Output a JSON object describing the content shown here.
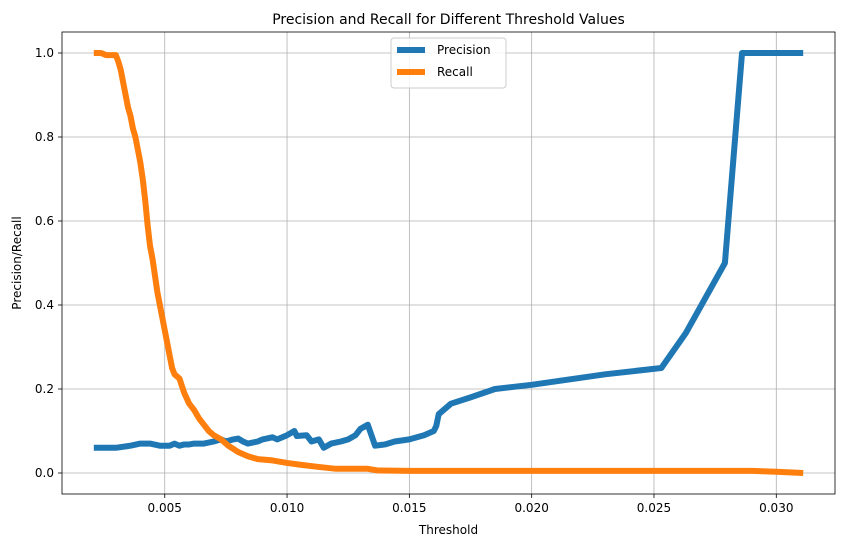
{
  "chart_data": {
    "type": "line",
    "title": "Precision and Recall for Different Threshold Values",
    "xlabel": "Threshold",
    "ylabel": "Precision/Recall",
    "xlim": [
      0.0008,
      0.0324
    ],
    "ylim": [
      -0.05,
      1.05
    ],
    "xticks": [
      0.005,
      0.01,
      0.015,
      0.02,
      0.025,
      0.03
    ],
    "xtick_labels": [
      "0.005",
      "0.010",
      "0.015",
      "0.020",
      "0.025",
      "0.030"
    ],
    "yticks": [
      0.0,
      0.2,
      0.4,
      0.6,
      0.8,
      1.0
    ],
    "ytick_labels": [
      "0.0",
      "0.2",
      "0.4",
      "0.6",
      "0.8",
      "1.0"
    ],
    "grid": true,
    "legend_position": "upper center",
    "series": [
      {
        "name": "Precision",
        "color": "#1f77b4",
        "points": [
          [
            0.0021,
            0.06
          ],
          [
            0.003,
            0.06
          ],
          [
            0.0036,
            0.065
          ],
          [
            0.004,
            0.07
          ],
          [
            0.0044,
            0.07
          ],
          [
            0.0048,
            0.065
          ],
          [
            0.0052,
            0.065
          ],
          [
            0.0054,
            0.07
          ],
          [
            0.0056,
            0.065
          ],
          [
            0.0058,
            0.068
          ],
          [
            0.006,
            0.068
          ],
          [
            0.0062,
            0.07
          ],
          [
            0.0066,
            0.07
          ],
          [
            0.007,
            0.075
          ],
          [
            0.0073,
            0.08
          ],
          [
            0.0075,
            0.075
          ],
          [
            0.0078,
            0.08
          ],
          [
            0.008,
            0.082
          ],
          [
            0.0082,
            0.075
          ],
          [
            0.0084,
            0.07
          ],
          [
            0.0088,
            0.075
          ],
          [
            0.009,
            0.08
          ],
          [
            0.0094,
            0.085
          ],
          [
            0.0096,
            0.08
          ],
          [
            0.01,
            0.09
          ],
          [
            0.0103,
            0.1
          ],
          [
            0.0104,
            0.088
          ],
          [
            0.0108,
            0.09
          ],
          [
            0.011,
            0.075
          ],
          [
            0.0113,
            0.08
          ],
          [
            0.0115,
            0.06
          ],
          [
            0.0118,
            0.07
          ],
          [
            0.0122,
            0.075
          ],
          [
            0.0125,
            0.08
          ],
          [
            0.0128,
            0.09
          ],
          [
            0.013,
            0.105
          ],
          [
            0.0133,
            0.115
          ],
          [
            0.0136,
            0.065
          ],
          [
            0.014,
            0.068
          ],
          [
            0.0144,
            0.075
          ],
          [
            0.015,
            0.08
          ],
          [
            0.0156,
            0.09
          ],
          [
            0.016,
            0.1
          ],
          [
            0.0161,
            0.112
          ],
          [
            0.0162,
            0.14
          ],
          [
            0.0167,
            0.165
          ],
          [
            0.0175,
            0.18
          ],
          [
            0.0185,
            0.2
          ],
          [
            0.02,
            0.21
          ],
          [
            0.023,
            0.235
          ],
          [
            0.0253,
            0.25
          ],
          [
            0.0263,
            0.333
          ],
          [
            0.0279,
            0.5
          ],
          [
            0.0286,
            1.0
          ],
          [
            0.0311,
            1.0
          ]
        ]
      },
      {
        "name": "Recall",
        "color": "#ff7f0e",
        "points": [
          [
            0.0021,
            1.0
          ],
          [
            0.0024,
            1.0
          ],
          [
            0.0026,
            0.995
          ],
          [
            0.003,
            0.995
          ],
          [
            0.0031,
            0.98
          ],
          [
            0.0032,
            0.96
          ],
          [
            0.0033,
            0.93
          ],
          [
            0.0034,
            0.9
          ],
          [
            0.0035,
            0.87
          ],
          [
            0.0036,
            0.85
          ],
          [
            0.0037,
            0.82
          ],
          [
            0.0038,
            0.8
          ],
          [
            0.0039,
            0.77
          ],
          [
            0.004,
            0.74
          ],
          [
            0.0041,
            0.7
          ],
          [
            0.0042,
            0.65
          ],
          [
            0.0043,
            0.59
          ],
          [
            0.0044,
            0.54
          ],
          [
            0.0045,
            0.51
          ],
          [
            0.0046,
            0.47
          ],
          [
            0.0047,
            0.43
          ],
          [
            0.0048,
            0.4
          ],
          [
            0.0049,
            0.37
          ],
          [
            0.005,
            0.34
          ],
          [
            0.0051,
            0.31
          ],
          [
            0.0052,
            0.28
          ],
          [
            0.0053,
            0.25
          ],
          [
            0.0054,
            0.235
          ],
          [
            0.0056,
            0.225
          ],
          [
            0.0058,
            0.19
          ],
          [
            0.006,
            0.165
          ],
          [
            0.0062,
            0.15
          ],
          [
            0.0064,
            0.13
          ],
          [
            0.0066,
            0.115
          ],
          [
            0.0068,
            0.1
          ],
          [
            0.007,
            0.09
          ],
          [
            0.0073,
            0.08
          ],
          [
            0.0076,
            0.065
          ],
          [
            0.008,
            0.05
          ],
          [
            0.0084,
            0.04
          ],
          [
            0.0088,
            0.033
          ],
          [
            0.0094,
            0.03
          ],
          [
            0.01,
            0.024
          ],
          [
            0.0105,
            0.02
          ],
          [
            0.0112,
            0.015
          ],
          [
            0.012,
            0.01
          ],
          [
            0.0133,
            0.01
          ],
          [
            0.0137,
            0.006
          ],
          [
            0.015,
            0.005
          ],
          [
            0.02,
            0.005
          ],
          [
            0.025,
            0.005
          ],
          [
            0.029,
            0.005
          ],
          [
            0.03,
            0.003
          ],
          [
            0.0311,
            0.0
          ]
        ]
      }
    ]
  }
}
